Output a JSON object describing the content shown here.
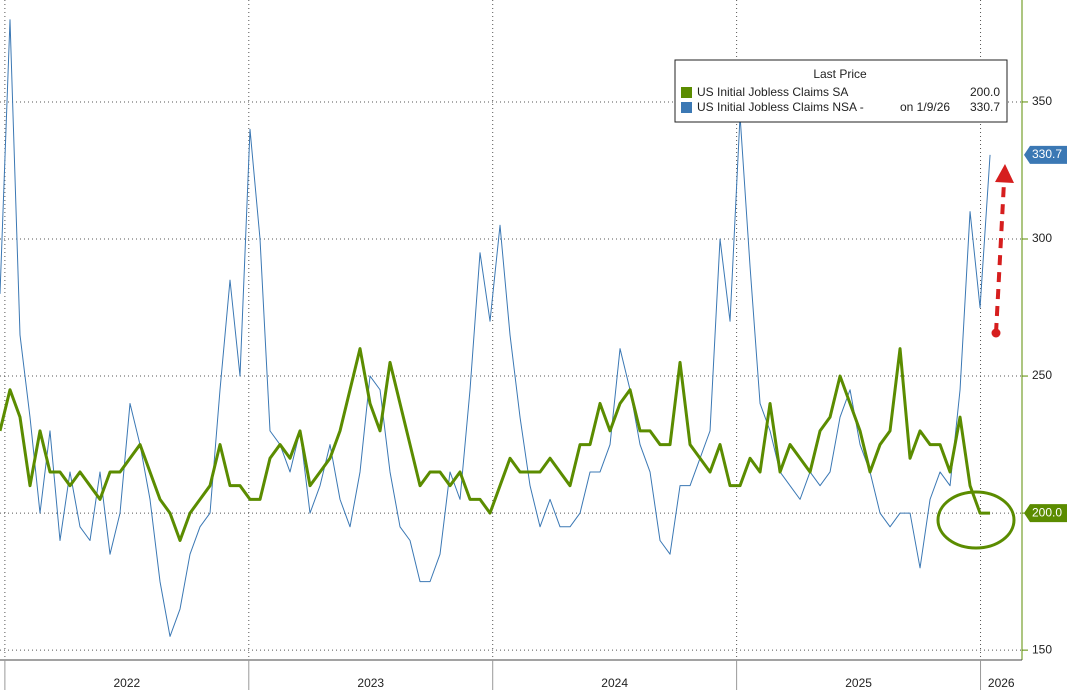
{
  "chart_data": {
    "type": "line",
    "legend_title": "Last Price",
    "x": [
      2021.98,
      2022.021,
      2022.062,
      2022.103,
      2022.144,
      2022.185,
      2022.226,
      2022.267,
      2022.308,
      2022.349,
      2022.39,
      2022.431,
      2022.472,
      2022.513,
      2022.554,
      2022.595,
      2022.636,
      2022.677,
      2022.718,
      2022.759,
      2022.8,
      2022.841,
      2022.882,
      2022.923,
      2022.964,
      2023.005,
      2023.046,
      2023.087,
      2023.128,
      2023.169,
      2023.21,
      2023.251,
      2023.292,
      2023.333,
      2023.374,
      2023.415,
      2023.456,
      2023.497,
      2023.538,
      2023.579,
      2023.62,
      2023.661,
      2023.702,
      2023.743,
      2023.784,
      2023.825,
      2023.866,
      2023.907,
      2023.948,
      2023.989,
      2024.03,
      2024.071,
      2024.112,
      2024.153,
      2024.194,
      2024.235,
      2024.276,
      2024.317,
      2024.358,
      2024.399,
      2024.44,
      2024.481,
      2024.522,
      2024.563,
      2024.604,
      2024.645,
      2024.686,
      2024.727,
      2024.768,
      2024.809,
      2024.85,
      2024.891,
      2024.932,
      2024.973,
      2025.014,
      2025.055,
      2025.096,
      2025.137,
      2025.178,
      2025.219,
      2025.26,
      2025.301,
      2025.342,
      2025.383,
      2025.424,
      2025.465,
      2025.506,
      2025.547,
      2025.588,
      2025.629,
      2025.67,
      2025.711,
      2025.752,
      2025.793,
      2025.834,
      2025.875,
      2025.916,
      2025.957,
      2025.998,
      2026.039
    ],
    "series": [
      {
        "name": "US Initial Jobless Claims SA",
        "color": "#5b8c00",
        "last_label": "200.0",
        "values": [
          230,
          245,
          235,
          210,
          230,
          215,
          215,
          210,
          215,
          210,
          205,
          215,
          215,
          220,
          225,
          215,
          205,
          200,
          190,
          200,
          205,
          210,
          225,
          210,
          210,
          205,
          205,
          220,
          225,
          220,
          230,
          210,
          215,
          220,
          230,
          245,
          260,
          240,
          230,
          255,
          240,
          225,
          210,
          215,
          215,
          210,
          215,
          205,
          205,
          200,
          210,
          220,
          215,
          215,
          215,
          220,
          215,
          210,
          225,
          225,
          240,
          230,
          240,
          245,
          230,
          230,
          225,
          225,
          255,
          225,
          220,
          215,
          225,
          210,
          210,
          220,
          215,
          240,
          215,
          225,
          220,
          215,
          230,
          235,
          250,
          240,
          230,
          215,
          225,
          230,
          260,
          220,
          230,
          225,
          225,
          215,
          235,
          210,
          200,
          200.0
        ]
      },
      {
        "name": "US Initial Jobless Claims NSA -",
        "note": "on 1/9/26",
        "color": "#3b78b4",
        "last_label": "330.7",
        "values": [
          280,
          380,
          265,
          235,
          200,
          230,
          190,
          215,
          195,
          190,
          215,
          185,
          200,
          240,
          225,
          205,
          175,
          155,
          165,
          185,
          195,
          200,
          245,
          285,
          250,
          340,
          300,
          230,
          225,
          215,
          230,
          200,
          210,
          225,
          205,
          195,
          215,
          250,
          245,
          215,
          195,
          190,
          175,
          175,
          185,
          215,
          205,
          245,
          295,
          270,
          305,
          265,
          235,
          210,
          195,
          205,
          195,
          195,
          200,
          215,
          215,
          225,
          260,
          245,
          225,
          215,
          190,
          185,
          210,
          210,
          220,
          230,
          300,
          270,
          345,
          290,
          240,
          230,
          215,
          210,
          205,
          215,
          210,
          215,
          235,
          245,
          225,
          215,
          200,
          195,
          200,
          200,
          180,
          205,
          215,
          210,
          245,
          310,
          275,
          330.7
        ]
      }
    ],
    "xlim": [
      2021.98,
      2026.17
    ],
    "xticks": [
      2022,
      2023,
      2024,
      2025,
      2026
    ],
    "ylim": [
      146.4,
      387.2
    ],
    "yticks": [
      150,
      200,
      250,
      300,
      350
    ],
    "grid": true
  }
}
